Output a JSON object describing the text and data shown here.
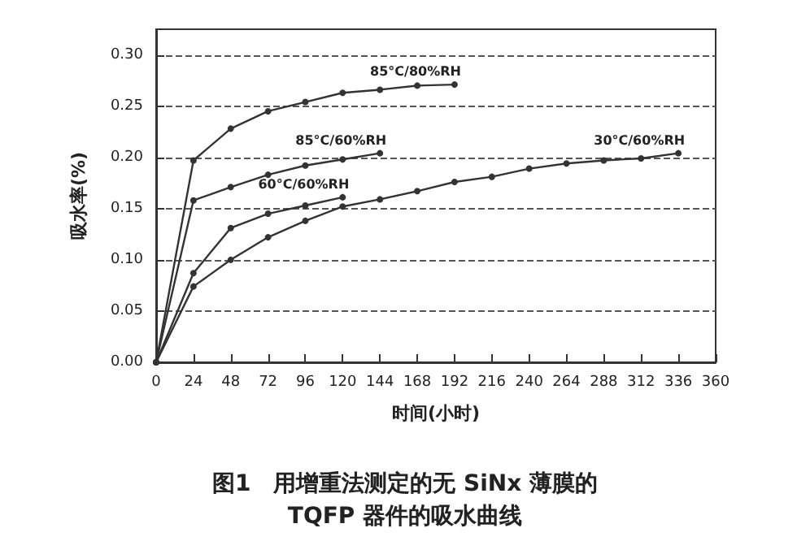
{
  "chart_data": {
    "type": "line",
    "title": "图1　用增重法测定的无 SiNx 薄膜的\nTQFP 器件的吸水曲线",
    "xlabel": "时间(小时)",
    "ylabel": "吸水率(%)",
    "xlim": [
      0,
      360
    ],
    "xticks": [
      0,
      24,
      48,
      72,
      96,
      120,
      144,
      168,
      192,
      216,
      240,
      264,
      288,
      312,
      336,
      360
    ],
    "ylim": [
      0,
      0.325
    ],
    "yticks": [
      {
        "value": 0,
        "label": "0.00"
      },
      {
        "value": 0.05,
        "label": "0.05"
      },
      {
        "value": 0.1,
        "label": "0.10"
      },
      {
        "value": 0.15,
        "label": "0.15"
      },
      {
        "value": 0.2,
        "label": "0.20"
      },
      {
        "value": 0.25,
        "label": "0.25"
      },
      {
        "value": 0.3,
        "label": "0.30"
      }
    ],
    "grid": "y",
    "marker": "circle",
    "line_style": "solid",
    "legend": false,
    "series": [
      {
        "name": "85°C/80%RH",
        "color": "#333333",
        "x": [
          0,
          24,
          48,
          72,
          96,
          120,
          144,
          168,
          192
        ],
        "values": [
          0,
          0.197,
          0.228,
          0.245,
          0.254,
          0.263,
          0.266,
          0.27,
          0.271
        ]
      },
      {
        "name": "85°C/60%RH",
        "color": "#333333",
        "x": [
          0,
          24,
          48,
          72,
          96,
          120,
          144
        ],
        "values": [
          0,
          0.158,
          0.171,
          0.183,
          0.192,
          0.198,
          0.204
        ]
      },
      {
        "name": "60°C/60%RH",
        "color": "#333333",
        "x": [
          0,
          24,
          48,
          72,
          96,
          120
        ],
        "values": [
          0,
          0.087,
          0.131,
          0.145,
          0.153,
          0.161
        ]
      },
      {
        "name": "30°C/60%RH",
        "color": "#333333",
        "x": [
          0,
          24,
          48,
          72,
          96,
          120,
          144,
          168,
          192,
          216,
          240,
          264,
          288,
          312,
          336
        ],
        "values": [
          0,
          0.074,
          0.1,
          0.122,
          0.138,
          0.152,
          0.159,
          0.167,
          0.176,
          0.181,
          0.189,
          0.194,
          0.197,
          0.199,
          0.204
        ]
      }
    ]
  }
}
